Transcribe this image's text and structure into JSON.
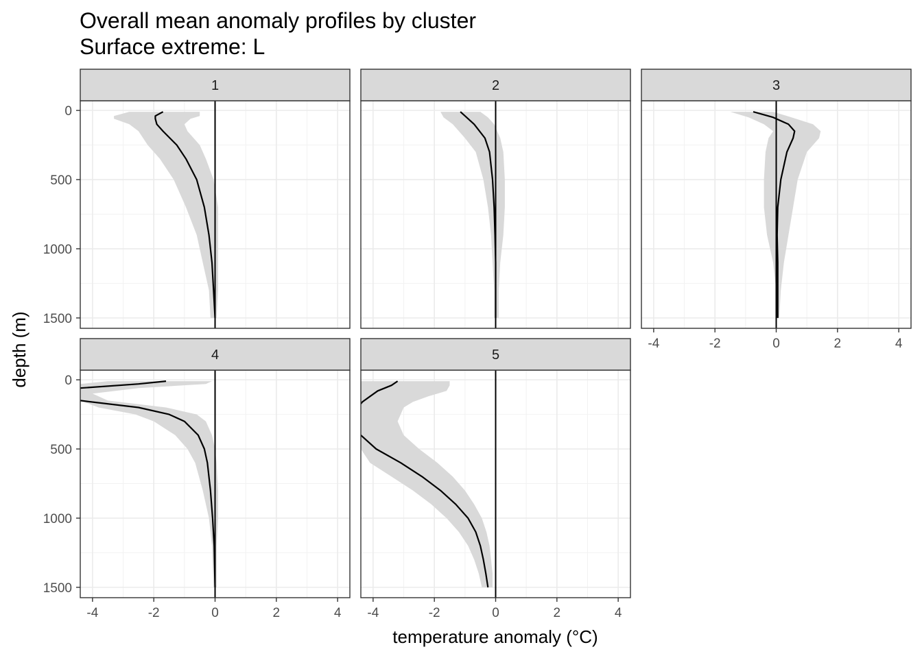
{
  "chart_data": {
    "type": "line",
    "title": "Overall mean anomaly profiles by cluster",
    "subtitle": "Surface extreme: L",
    "xlabel": "temperature anomaly (°C)",
    "ylabel": "depth (m)",
    "xlim": [
      -4.4,
      4.4
    ],
    "ylim": [
      1575,
      -70
    ],
    "x_ticks": [
      -4,
      -2,
      0,
      2,
      4
    ],
    "x_tick_labels": [
      "-4",
      "-2",
      "0",
      "2",
      "4"
    ],
    "y_ticks": [
      0,
      500,
      1000,
      1500
    ],
    "y_tick_labels": [
      "0",
      "500",
      "1000",
      "1500"
    ],
    "grid": true,
    "reference_line_x": 0,
    "ribbon_color": "#d9d9d9",
    "line_color": "#000000",
    "strip_color": "#d9d9d9",
    "panels": [
      {
        "label": "1",
        "depth": [
          10,
          40,
          60,
          100,
          150,
          250,
          350,
          500,
          700,
          900,
          1100,
          1300,
          1500
        ],
        "mean": [
          -1.7,
          -1.95,
          -1.95,
          -1.9,
          -1.7,
          -1.25,
          -0.95,
          -0.6,
          -0.35,
          -0.2,
          -0.1,
          -0.05,
          0
        ],
        "lower": [
          -2.8,
          -3.3,
          -3.3,
          -2.8,
          -2.5,
          -2.2,
          -1.8,
          -1.35,
          -0.95,
          -0.6,
          -0.4,
          -0.2,
          -0.15
        ],
        "upper": [
          -0.5,
          -0.5,
          -0.8,
          -1.0,
          -0.9,
          -0.5,
          -0.3,
          -0.05,
          0.1,
          0.1,
          0.1,
          0.1,
          0.05
        ]
      },
      {
        "label": "2",
        "depth": [
          10,
          50,
          100,
          200,
          300,
          500,
          700,
          900,
          1100,
          1300,
          1500
        ],
        "mean": [
          -1.15,
          -0.95,
          -0.7,
          -0.35,
          -0.2,
          -0.1,
          -0.05,
          -0.02,
          0,
          0,
          0
        ],
        "lower": [
          -1.8,
          -1.7,
          -1.4,
          -1.0,
          -0.65,
          -0.4,
          -0.25,
          -0.15,
          -0.1,
          -0.05,
          -0.05
        ],
        "upper": [
          -0.5,
          -0.25,
          -0.05,
          0.15,
          0.25,
          0.3,
          0.3,
          0.25,
          0.15,
          0.1,
          0.1
        ]
      },
      {
        "label": "3",
        "depth": [
          10,
          50,
          100,
          150,
          200,
          300,
          500,
          700,
          900,
          1100,
          1300,
          1500
        ],
        "mean": [
          -0.75,
          -0.1,
          0.4,
          0.6,
          0.55,
          0.35,
          0.15,
          0.05,
          0.03,
          0.05,
          0.05,
          0.05
        ],
        "lower": [
          -1.5,
          -0.9,
          -0.4,
          -0.1,
          -0.25,
          -0.35,
          -0.4,
          -0.4,
          -0.3,
          -0.1,
          0,
          0
        ],
        "upper": [
          -0.1,
          0.5,
          1.2,
          1.45,
          1.4,
          1.0,
          0.7,
          0.55,
          0.4,
          0.25,
          0.15,
          0.1
        ]
      },
      {
        "label": "4",
        "depth": [
          10,
          30,
          60,
          100,
          150,
          200,
          250,
          300,
          400,
          500,
          600,
          800,
          1000,
          1200,
          1500
        ],
        "mean": [
          -1.6,
          -2.5,
          -4.4,
          -4.6,
          -4.4,
          -2.5,
          -1.5,
          -1.0,
          -0.55,
          -0.35,
          -0.25,
          -0.15,
          -0.08,
          -0.03,
          0
        ],
        "lower": [
          -3.5,
          -4.4,
          -4.4,
          -4.4,
          -4.4,
          -3.8,
          -2.6,
          -2.0,
          -1.3,
          -0.9,
          -0.65,
          -0.4,
          -0.2,
          -0.1,
          -0.05
        ],
        "upper": [
          -0.1,
          -0.3,
          -2.5,
          -4.0,
          -3.5,
          -1.6,
          -0.6,
          -0.3,
          -0.1,
          0,
          0.05,
          0.1,
          0.1,
          0.05,
          0.05
        ]
      },
      {
        "label": "5",
        "depth": [
          10,
          40,
          80,
          120,
          160,
          200,
          300,
          400,
          500,
          600,
          700,
          800,
          900,
          1000,
          1100,
          1200,
          1300,
          1400,
          1500
        ],
        "mean": [
          -3.2,
          -3.4,
          -3.85,
          -4.1,
          -4.35,
          -4.5,
          -5.0,
          -4.4,
          -3.9,
          -3.1,
          -2.4,
          -1.8,
          -1.3,
          -0.9,
          -0.65,
          -0.5,
          -0.4,
          -0.32,
          -0.25
        ],
        "lower": [
          -4.4,
          -4.4,
          -4.4,
          -4.4,
          -4.4,
          -4.4,
          -4.4,
          -4.4,
          -4.4,
          -4.1,
          -3.4,
          -2.7,
          -2.1,
          -1.6,
          -1.2,
          -0.9,
          -0.7,
          -0.55,
          -0.45
        ],
        "upper": [
          -1.5,
          -1.5,
          -1.6,
          -2.2,
          -2.7,
          -3.0,
          -3.2,
          -3.0,
          -2.5,
          -1.9,
          -1.4,
          -1.0,
          -0.7,
          -0.45,
          -0.3,
          -0.2,
          -0.15,
          -0.1,
          -0.1
        ]
      }
    ]
  }
}
